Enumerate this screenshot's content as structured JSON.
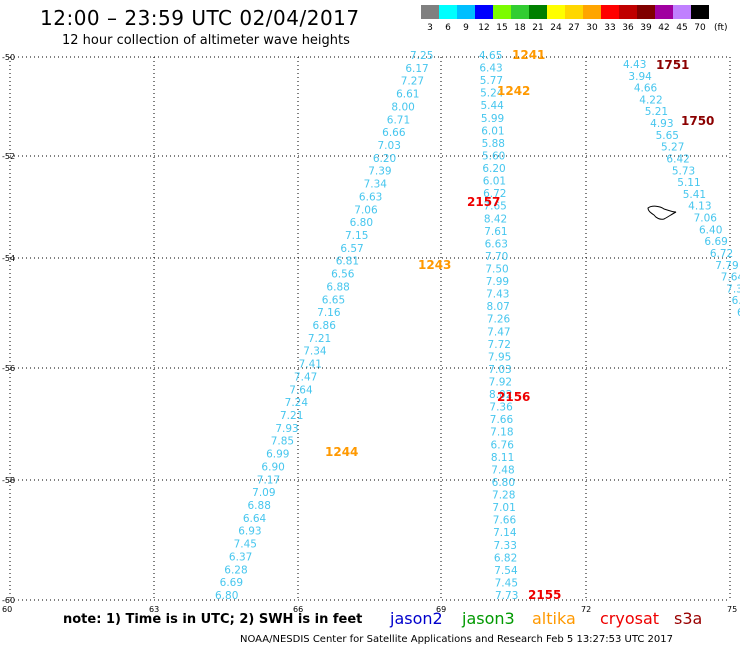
{
  "header": {
    "title": "12:00 – 23:59 UTC 02/04/2017",
    "subtitle": "12 hour collection of altimeter wave heights"
  },
  "color_scale": {
    "unit": "(ft)",
    "items": [
      {
        "label": "3",
        "color": "#808080"
      },
      {
        "label": "6",
        "color": "#00ffff"
      },
      {
        "label": "9",
        "color": "#00bfff"
      },
      {
        "label": "12",
        "color": "#0000ff"
      },
      {
        "label": "15",
        "color": "#7cfc00"
      },
      {
        "label": "18",
        "color": "#32cd32"
      },
      {
        "label": "21",
        "color": "#008000"
      },
      {
        "label": "24",
        "color": "#ffff00"
      },
      {
        "label": "27",
        "color": "#ffd700"
      },
      {
        "label": "30",
        "color": "#ffa500"
      },
      {
        "label": "33",
        "color": "#ff0000"
      },
      {
        "label": "36",
        "color": "#c00000"
      },
      {
        "label": "39",
        "color": "#800000"
      },
      {
        "label": "42",
        "color": "#a000a0"
      },
      {
        "label": "45",
        "color": "#c080ff"
      },
      {
        "label": "70",
        "color": "#000000"
      }
    ]
  },
  "axes": {
    "lat_labels": [
      "-50",
      "-52",
      "-54",
      "-56",
      "-58",
      "-60"
    ],
    "lon_labels": [
      "60",
      "63",
      "66",
      "69",
      "72",
      "75"
    ]
  },
  "tracks": [
    {
      "satellite": "altika",
      "color": "#46c6ee",
      "time_labels": [
        {
          "text": "1241",
          "color": "#ff9900"
        },
        {
          "text": "1242",
          "color": "#ff9900"
        },
        {
          "text": "1243",
          "color": "#ff9900"
        },
        {
          "text": "1244",
          "color": "#ff9900"
        }
      ],
      "values": [
        "4.65",
        "6.43",
        "5.77",
        "5.24",
        "5.44",
        "5.99",
        "6.01",
        "5.88",
        "5.60",
        "6.20",
        "6.01",
        "6.72",
        "7.65",
        "8.42",
        "7.61",
        "6.63",
        "7.70",
        "7.50",
        "7.99",
        "7.43",
        "8.07",
        "7.26",
        "7.47",
        "7.72",
        "7.95",
        "7.03",
        "7.92",
        "8.02",
        "7.36",
        "7.66",
        "7.18",
        "6.76",
        "8.11",
        "7.48",
        "6.80",
        "7.28",
        "7.01",
        "7.66",
        "7.14",
        "7.33",
        "6.82",
        "7.54",
        "7.45",
        "7.73"
      ]
    },
    {
      "satellite": "cryosat",
      "color": "#46c6ee",
      "time_labels": [
        {
          "text": "2157",
          "color": "#ee0000"
        },
        {
          "text": "2156",
          "color": "#ee0000"
        },
        {
          "text": "2155",
          "color": "#ee0000"
        }
      ],
      "values": [
        "7.25",
        "6.17",
        "7.27",
        "6.61",
        "8.00",
        "6.71",
        "6.66",
        "7.03",
        "6.20",
        "7.39",
        "7.34",
        "6.63",
        "7.06",
        "6.80",
        "7.15",
        "6.57",
        "6.81",
        "6.56",
        "6.88",
        "6.65",
        "7.16",
        "6.86",
        "7.21",
        "7.34",
        "7.41",
        "7.47",
        "7.64",
        "7.24",
        "7.21",
        "7.93",
        "7.85",
        "6.99",
        "6.90",
        "7.17",
        "7.09",
        "6.88",
        "6.64",
        "6.93",
        "7.45",
        "6.37",
        "6.28",
        "6.69",
        "6.80"
      ]
    },
    {
      "satellite": "s3a",
      "color": "#46c6ee",
      "time_labels": [
        {
          "text": "1751",
          "color": "#8b0000"
        },
        {
          "text": "1750",
          "color": "#8b0000"
        }
      ],
      "values": [
        "4.43",
        "3.94",
        "4.66",
        "4.22",
        "5.21",
        "4.93",
        "5.65",
        "5.27",
        "6.42",
        "5.73",
        "5.11",
        "5.41",
        "4.13",
        "7.06",
        "6.40",
        "6.69",
        "6.72",
        "7.79",
        "7.64",
        "7.3",
        "6.",
        "6"
      ]
    }
  ],
  "footer": {
    "note": "note:  1) Time is in UTC;  2) SWH is in feet",
    "legend": [
      {
        "label": "jason2",
        "color": "#0000cc"
      },
      {
        "label": "jason3",
        "color": "#009900"
      },
      {
        "label": "altika",
        "color": "#ff9900"
      },
      {
        "label": "cryosat",
        "color": "#ee0000"
      },
      {
        "label": "s3a",
        "color": "#990000"
      }
    ],
    "credit": "NOAA/NESDIS Center for Satellite Applications and Research    Feb  5 13:27:53 UTC 2017"
  }
}
